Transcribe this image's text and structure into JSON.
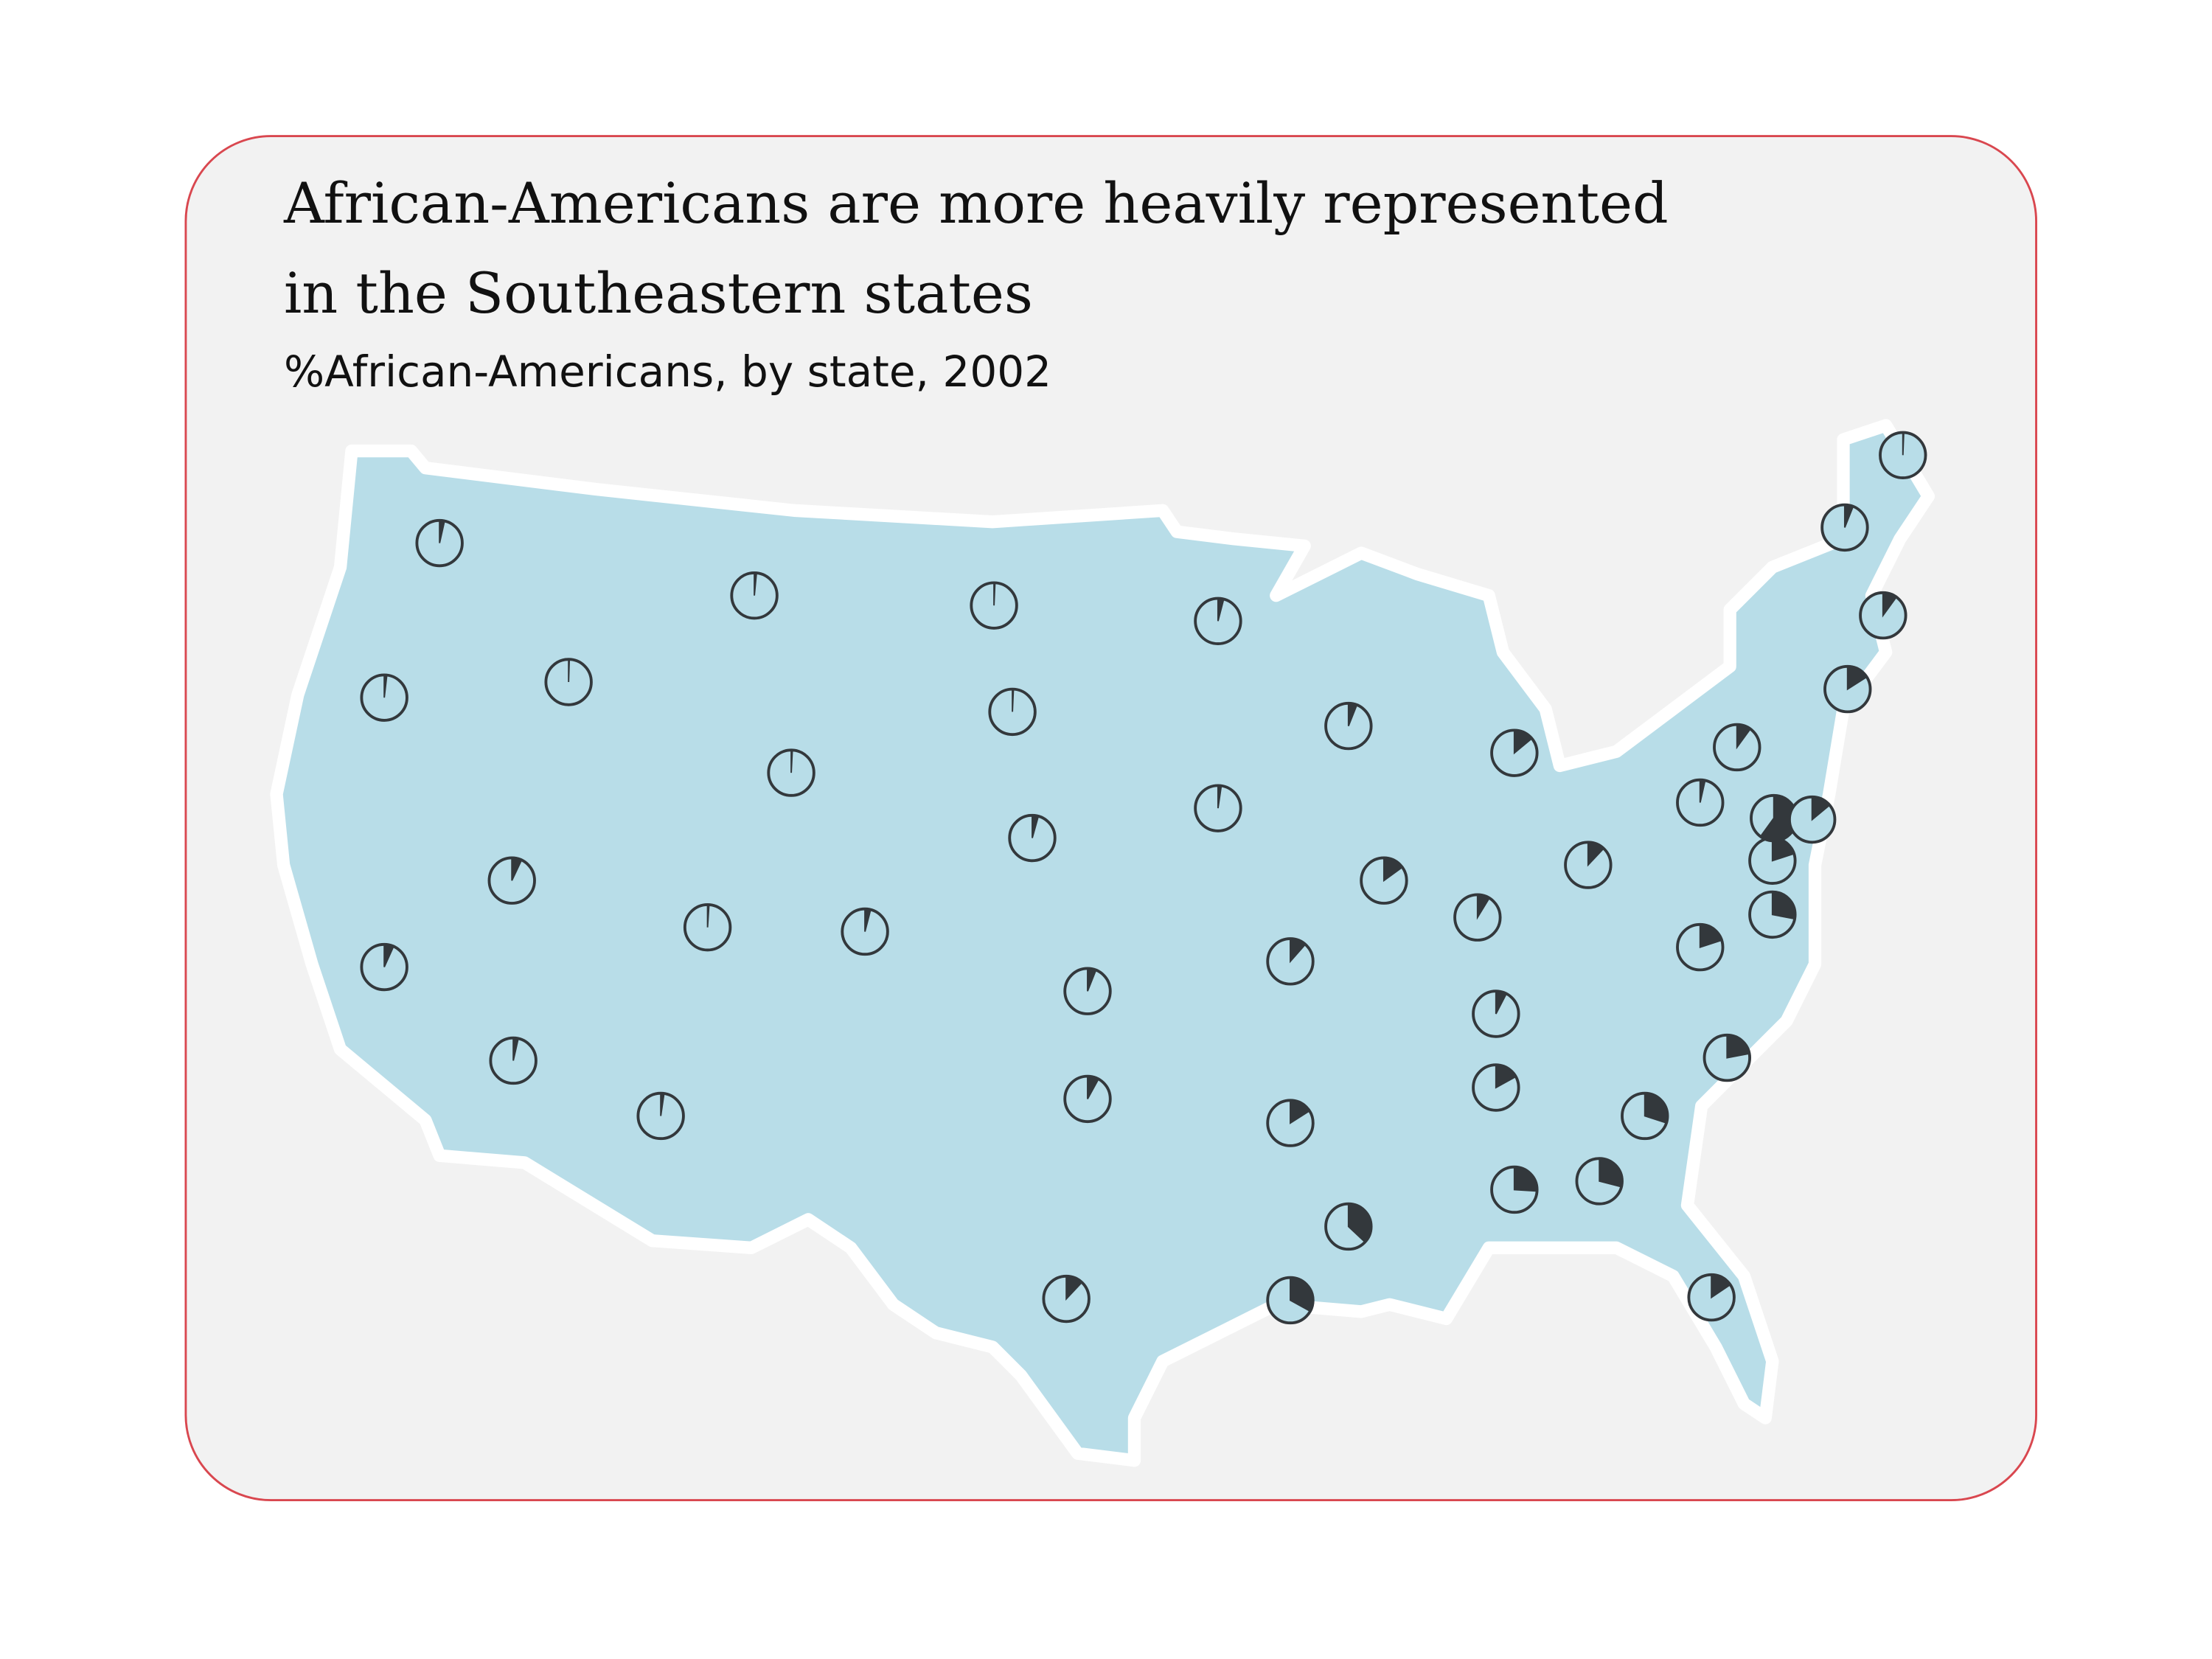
{
  "chart_data": {
    "type": "pie-map",
    "title": "African-Americans are more heavily represented in the Southeastern states",
    "subtitle": "%African-Americans, by state, 2002",
    "values": [
      3.5,
      1.8,
      6.7,
      0.5,
      7,
      1.5,
      0.8,
      1,
      3.5,
      2.3,
      4,
      0.7,
      0.7,
      4.3,
      6,
      8,
      12,
      4,
      2.3,
      11.5,
      16,
      33,
      6,
      15,
      37,
      14,
      8.7,
      7.6,
      17,
      26,
      12,
      29,
      15.5,
      30,
      22,
      20,
      3.5,
      10,
      28,
      20,
      60,
      14,
      16,
      10,
      6,
      0.6
    ],
    "color": "#33383c",
    "map_color": "#b8dde8"
  }
}
